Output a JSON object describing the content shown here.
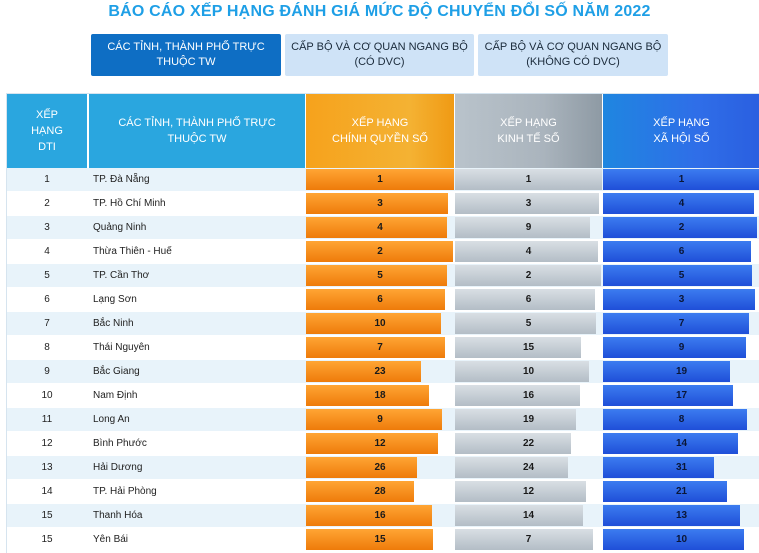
{
  "title": "BÁO CÁO XẾP HẠNG ĐÁNH GIÁ MỨC ĐỘ CHUYỂN ĐỔI SỐ NĂM 2022",
  "tabs": [
    {
      "label": "CÁC TỈNH, THÀNH PHỐ TRỰC\nTHUỘC TW",
      "active": true
    },
    {
      "label": "CẤP BỘ VÀ CƠ QUAN NGANG BỘ\n(CÓ DVC)",
      "active": false
    },
    {
      "label": "CẤP BỘ VÀ CƠ QUAN NGANG BỘ\n(KHÔNG CÓ DVC)",
      "active": false
    }
  ],
  "table": {
    "headers": {
      "dti": "XẾP\nHẠNG\nDTI",
      "name": "CÁC TỈNH, THÀNH PHỐ TRỰC\nTHUỘC TW",
      "gov": "XẾP HẠNG\nCHÍNH QUYỀN SỐ",
      "eco": "XẾP HẠNG\nKINH TẾ SỐ",
      "soc": "XẾP HẠNG\nXÃ HỘI SỐ"
    },
    "colors": {
      "gov": "#f08a12",
      "eco": "#b8c2cb",
      "soc": "#2a5fe0"
    },
    "rows": [
      {
        "dti": "1",
        "name": "TP. Đà Nẵng",
        "gov": "1",
        "eco": "1",
        "soc": "1",
        "gov_fill": 1.0,
        "eco_fill": 1.0,
        "soc_fill": 1.0
      },
      {
        "dti": "2",
        "name": "TP. Hồ Chí Minh",
        "gov": "3",
        "eco": "3",
        "soc": "4",
        "gov_fill": 0.96,
        "eco_fill": 0.98,
        "soc_fill": 0.96
      },
      {
        "dti": "3",
        "name": "Quảng Ninh",
        "gov": "4",
        "eco": "9",
        "soc": "2",
        "gov_fill": 0.95,
        "eco_fill": 0.92,
        "soc_fill": 0.98
      },
      {
        "dti": "4",
        "name": "Thừa Thiên - Huế",
        "gov": "2",
        "eco": "4",
        "soc": "6",
        "gov_fill": 0.99,
        "eco_fill": 0.97,
        "soc_fill": 0.94
      },
      {
        "dti": "5",
        "name": "TP. Cần Thơ",
        "gov": "5",
        "eco": "2",
        "soc": "5",
        "gov_fill": 0.95,
        "eco_fill": 0.99,
        "soc_fill": 0.95
      },
      {
        "dti": "6",
        "name": "Lạng Sơn",
        "gov": "6",
        "eco": "6",
        "soc": "3",
        "gov_fill": 0.94,
        "eco_fill": 0.95,
        "soc_fill": 0.97
      },
      {
        "dti": "7",
        "name": "Bắc Ninh",
        "gov": "10",
        "eco": "5",
        "soc": "7",
        "gov_fill": 0.91,
        "eco_fill": 0.96,
        "soc_fill": 0.93
      },
      {
        "dti": "8",
        "name": "Thái Nguyên",
        "gov": "7",
        "eco": "15",
        "soc": "9",
        "gov_fill": 0.94,
        "eco_fill": 0.86,
        "soc_fill": 0.91
      },
      {
        "dti": "9",
        "name": "Bắc Giang",
        "gov": "23",
        "eco": "10",
        "soc": "19",
        "gov_fill": 0.78,
        "eco_fill": 0.91,
        "soc_fill": 0.81
      },
      {
        "dti": "10",
        "name": "Nam Định",
        "gov": "18",
        "eco": "16",
        "soc": "17",
        "gov_fill": 0.83,
        "eco_fill": 0.85,
        "soc_fill": 0.83
      },
      {
        "dti": "11",
        "name": "Long An",
        "gov": "9",
        "eco": "19",
        "soc": "8",
        "gov_fill": 0.92,
        "eco_fill": 0.82,
        "soc_fill": 0.92
      },
      {
        "dti": "12",
        "name": "Bình Phước",
        "gov": "12",
        "eco": "22",
        "soc": "14",
        "gov_fill": 0.89,
        "eco_fill": 0.79,
        "soc_fill": 0.86
      },
      {
        "dti": "13",
        "name": "Hải Dương",
        "gov": "26",
        "eco": "24",
        "soc": "31",
        "gov_fill": 0.75,
        "eco_fill": 0.77,
        "soc_fill": 0.71
      },
      {
        "dti": "14",
        "name": "TP. Hải Phòng",
        "gov": "28",
        "eco": "12",
        "soc": "21",
        "gov_fill": 0.73,
        "eco_fill": 0.89,
        "soc_fill": 0.79
      },
      {
        "dti": "15",
        "name": "Thanh Hóa",
        "gov": "16",
        "eco": "14",
        "soc": "13",
        "gov_fill": 0.85,
        "eco_fill": 0.87,
        "soc_fill": 0.87
      },
      {
        "dti": "15",
        "name": "Yên Bái",
        "gov": "15",
        "eco": "7",
        "soc": "10",
        "gov_fill": 0.86,
        "eco_fill": 0.94,
        "soc_fill": 0.9
      }
    ]
  }
}
